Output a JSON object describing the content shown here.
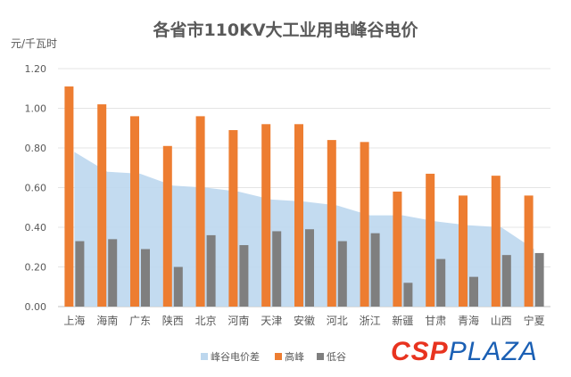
{
  "chart_data": {
    "type": "bar",
    "title": "各省市110KV大工业用电峰谷电价",
    "ylabel": "元/千瓦时",
    "xlabel": "",
    "ylim": [
      0,
      1.2
    ],
    "yticks": [
      "0.00",
      "0.20",
      "0.40",
      "0.60",
      "0.80",
      "1.00",
      "1.20"
    ],
    "categories": [
      "上海",
      "海南",
      "广东",
      "陕西",
      "北京",
      "河南",
      "天津",
      "安徽",
      "河北",
      "浙江",
      "新疆",
      "甘肃",
      "青海",
      "山西",
      "宁夏"
    ],
    "series": [
      {
        "name": "峰谷电价差",
        "type": "area",
        "color": "#bdd7ee",
        "values": [
          0.78,
          0.68,
          0.67,
          0.61,
          0.6,
          0.58,
          0.54,
          0.53,
          0.51,
          0.46,
          0.46,
          0.43,
          0.41,
          0.4,
          0.29
        ]
      },
      {
        "name": "高峰",
        "type": "bar",
        "color": "#ed7d31",
        "values": [
          1.11,
          1.02,
          0.96,
          0.81,
          0.96,
          0.89,
          0.92,
          0.92,
          0.84,
          0.83,
          0.58,
          0.67,
          0.56,
          0.66,
          0.56
        ]
      },
      {
        "name": "低谷",
        "type": "bar",
        "color": "#7f7f7f",
        "values": [
          0.33,
          0.34,
          0.29,
          0.2,
          0.36,
          0.31,
          0.38,
          0.39,
          0.33,
          0.37,
          0.12,
          0.24,
          0.15,
          0.26,
          0.27
        ]
      }
    ],
    "grid": true,
    "legend": "bottom"
  },
  "watermark": {
    "part1": "CSP",
    "part2": "PLAZA"
  }
}
